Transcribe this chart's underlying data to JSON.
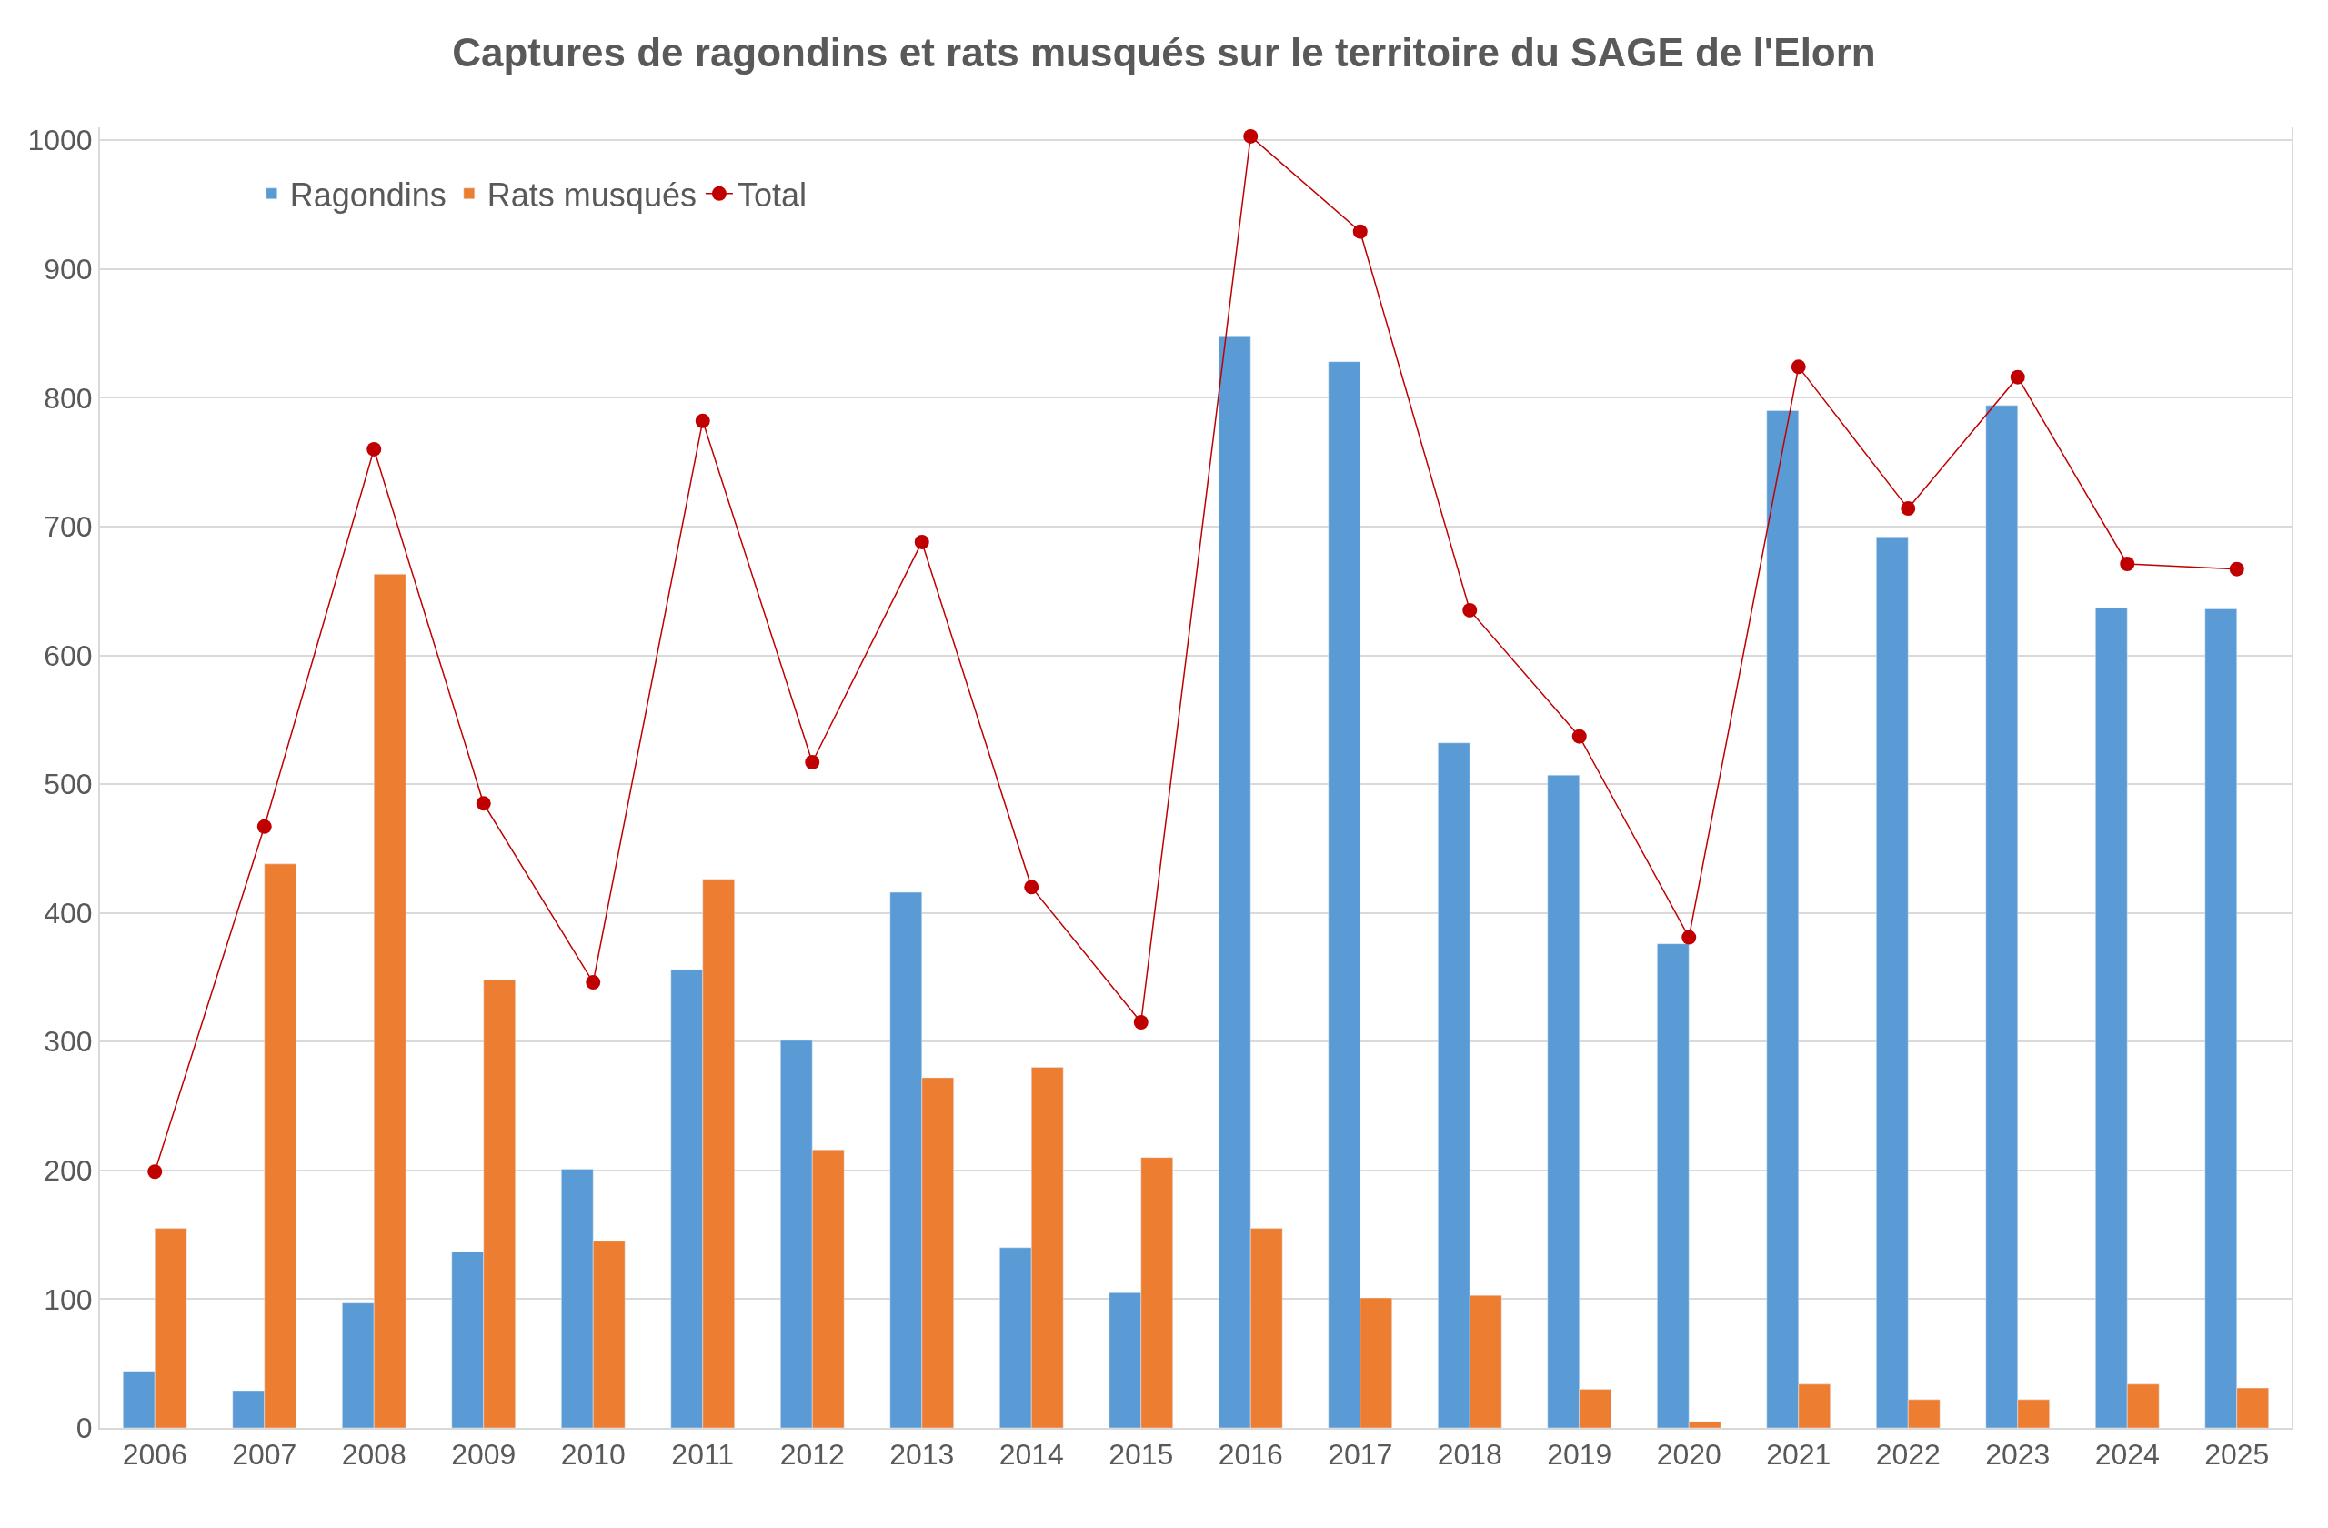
{
  "chart_data": {
    "type": "bar",
    "title": "Captures de ragondins et rats musqués sur le territoire du SAGE de l'Elorn",
    "categories": [
      "2006",
      "2007",
      "2008",
      "2009",
      "2010",
      "2011",
      "2012",
      "2013",
      "2014",
      "2015",
      "2016",
      "2017",
      "2018",
      "2019",
      "2020",
      "2021",
      "2022",
      "2023",
      "2024",
      "2025"
    ],
    "series": [
      {
        "name": "Ragondins",
        "color": "#5b9bd5",
        "values": [
          44,
          29,
          97,
          137,
          201,
          356,
          301,
          416,
          140,
          105,
          848,
          828,
          532,
          507,
          376,
          790,
          692,
          794,
          637,
          636
        ]
      },
      {
        "name": "Rats musqués",
        "color": "#ed7d31",
        "values": [
          155,
          438,
          663,
          348,
          145,
          426,
          216,
          272,
          280,
          210,
          155,
          101,
          103,
          30,
          5,
          34,
          22,
          22,
          34,
          31
        ]
      },
      {
        "name": "Total",
        "type": "line",
        "color": "#c00000",
        "marker": "circle",
        "values": [
          199,
          467,
          760,
          485,
          346,
          782,
          517,
          688,
          420,
          315,
          1003,
          929,
          635,
          537,
          381,
          824,
          714,
          816,
          671,
          667
        ]
      }
    ],
    "ylim": [
      0,
      1010
    ],
    "yticks": [
      0,
      100,
      200,
      300,
      400,
      500,
      600,
      700,
      800,
      900,
      1000
    ],
    "grid": "y",
    "legend": "top left"
  }
}
